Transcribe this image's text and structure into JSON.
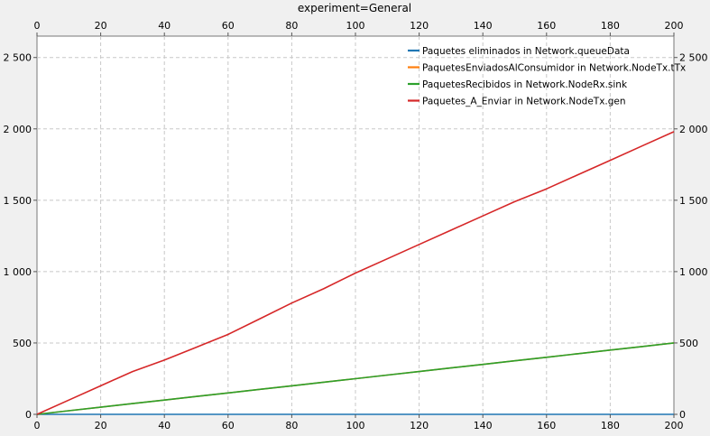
{
  "chart_data": {
    "type": "line",
    "title": "experiment=General",
    "xlabel": "",
    "ylabel": "",
    "xlim": [
      0,
      200
    ],
    "ylim": [
      0,
      2650
    ],
    "x_ticks": [
      "0",
      "20",
      "40",
      "60",
      "80",
      "100",
      "120",
      "140",
      "160",
      "180",
      "200"
    ],
    "y_ticks": [
      "0",
      "500",
      "1 000",
      "1 500",
      "2 000",
      "2 500"
    ],
    "grid": true,
    "legend_position": "top-right",
    "x": [
      0,
      10,
      20,
      30,
      40,
      50,
      60,
      70,
      80,
      90,
      100,
      110,
      120,
      130,
      140,
      150,
      160,
      170,
      180,
      190,
      200
    ],
    "series": [
      {
        "name": "Paquetes eliminados in Network.queueData",
        "color": "#1f77b4",
        "values": [
          0,
          0,
          0,
          0,
          0,
          0,
          0,
          0,
          0,
          0,
          0,
          0,
          0,
          0,
          0,
          0,
          0,
          0,
          0,
          0,
          0
        ]
      },
      {
        "name": "PaquetesEnviadosAlConsumidor in Network.NodeTx.tTx",
        "color": "#ff7f0e",
        "values": [
          0,
          25,
          50,
          75,
          100,
          125,
          150,
          175,
          200,
          225,
          250,
          275,
          300,
          325,
          350,
          375,
          400,
          425,
          450,
          475,
          500
        ]
      },
      {
        "name": "PaquetesRecibidos in Network.NodeRx.sink",
        "color": "#2ca02c",
        "values": [
          0,
          25,
          50,
          75,
          100,
          125,
          150,
          175,
          200,
          225,
          250,
          275,
          300,
          325,
          350,
          375,
          400,
          425,
          450,
          475,
          500
        ]
      },
      {
        "name": "Paquetes_A_Enviar in Network.NodeTx.gen",
        "color": "#d62728",
        "values": [
          0,
          100,
          200,
          300,
          380,
          470,
          560,
          670,
          780,
          880,
          990,
          1090,
          1190,
          1290,
          1390,
          1490,
          1580,
          1680,
          1780,
          1880,
          1980
        ]
      }
    ]
  }
}
